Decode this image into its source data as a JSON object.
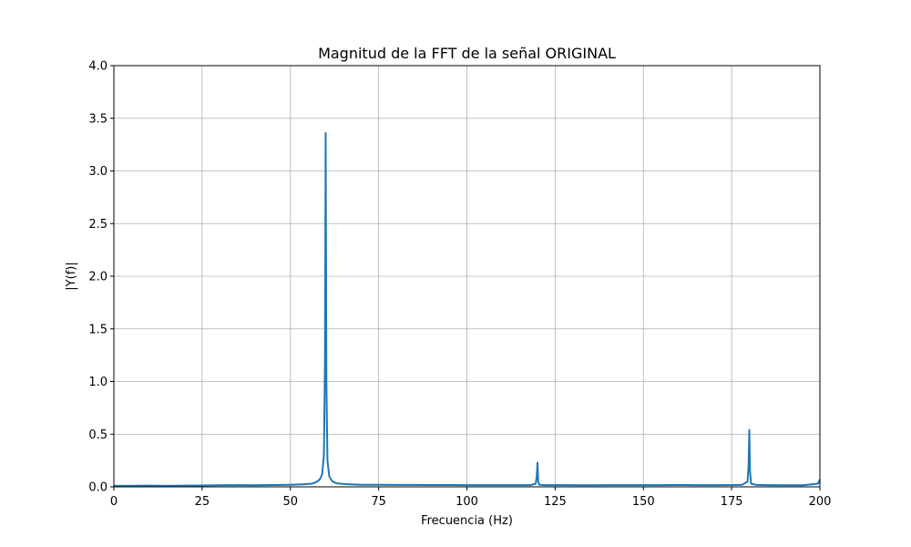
{
  "chart_data": {
    "type": "line",
    "title": "Magnitud de la FFT de la señal ORIGINAL",
    "xlabel": "Frecuencia (Hz)",
    "ylabel": "|Y(f)|",
    "xlim": [
      0,
      200
    ],
    "ylim": [
      0,
      4.0
    ],
    "xticks": [
      0,
      25,
      50,
      75,
      100,
      125,
      150,
      175,
      200
    ],
    "yticks": [
      0.0,
      0.5,
      1.0,
      1.5,
      2.0,
      2.5,
      3.0,
      3.5,
      4.0
    ],
    "grid": true,
    "line_color": "#1f77b4",
    "grid_color": "#b0b0b0",
    "series": [
      {
        "x": [
          0,
          5,
          10,
          15,
          20,
          25,
          30,
          35,
          40,
          45,
          50,
          54,
          56,
          57,
          58,
          58.5,
          59,
          59.5,
          59.8,
          60,
          60.2,
          60.5,
          61,
          61.5,
          62,
          63,
          64,
          66,
          70,
          75,
          80,
          85,
          90,
          95,
          100,
          105,
          110,
          115,
          118,
          119.5,
          119.8,
          120,
          120.2,
          120.5,
          122,
          125,
          130,
          135,
          140,
          145,
          150,
          155,
          160,
          165,
          170,
          175,
          178,
          179.5,
          179.8,
          180,
          180.2,
          180.5,
          182,
          185,
          190,
          195,
          199.5,
          200
        ],
        "y": [
          0.01,
          0.01,
          0.012,
          0.01,
          0.012,
          0.013,
          0.015,
          0.016,
          0.015,
          0.017,
          0.02,
          0.025,
          0.03,
          0.04,
          0.06,
          0.08,
          0.12,
          0.3,
          1.2,
          3.36,
          1.0,
          0.25,
          0.1,
          0.07,
          0.05,
          0.035,
          0.03,
          0.025,
          0.02,
          0.02,
          0.018,
          0.018,
          0.017,
          0.017,
          0.016,
          0.016,
          0.016,
          0.016,
          0.016,
          0.03,
          0.1,
          0.23,
          0.05,
          0.02,
          0.016,
          0.016,
          0.016,
          0.015,
          0.016,
          0.016,
          0.016,
          0.016,
          0.018,
          0.016,
          0.016,
          0.017,
          0.02,
          0.05,
          0.2,
          0.54,
          0.15,
          0.03,
          0.018,
          0.016,
          0.015,
          0.015,
          0.03,
          0.07
        ]
      }
    ]
  }
}
